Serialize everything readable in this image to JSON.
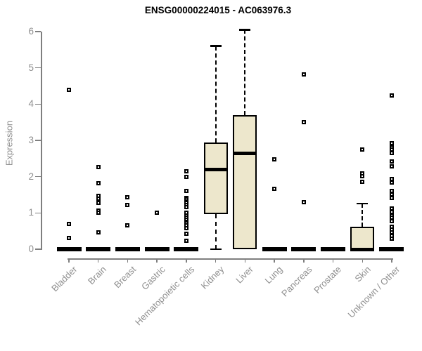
{
  "title": "ENSG00000224015 - AC063976.3",
  "colors": {
    "box_fill": "#EDE7CC",
    "box_border": "#000000",
    "median": "#000000",
    "axis": "#7F7F7F",
    "tick_label": "#8F8F8F",
    "title_text": "#000000",
    "background": "#FFFFFF"
  },
  "chart_data": {
    "type": "boxplot",
    "title": "ENSG00000224015 - AC063976.3",
    "xlabel": "",
    "ylabel": "Expression",
    "ylim": [
      0,
      6
    ],
    "yticks": [
      0,
      1,
      2,
      3,
      4,
      5,
      6
    ],
    "grid": false,
    "legend": false,
    "categories": [
      "Bladder",
      "Brain",
      "Breast",
      "Gastric",
      "Hematopoietic cells",
      "Kidney",
      "Liver",
      "Lung",
      "Pancreas",
      "Prostate",
      "Skin",
      "Unknown / Other"
    ],
    "boxes": [
      {
        "category": "Bladder",
        "whisker_low": 0,
        "q1": 0,
        "median": 0,
        "q3": 0,
        "whisker_high": 0,
        "outliers": [
          4.4,
          0.7,
          0.3
        ]
      },
      {
        "category": "Brain",
        "whisker_low": 0,
        "q1": 0,
        "median": 0,
        "q3": 0,
        "whisker_high": 0,
        "outliers": [
          2.27,
          1.82,
          1.47,
          1.4,
          1.28,
          1.06,
          1.0,
          0.46
        ]
      },
      {
        "category": "Breast",
        "whisker_low": 0,
        "q1": 0,
        "median": 0,
        "q3": 0,
        "whisker_high": 0,
        "outliers": [
          1.43,
          1.22,
          0.65
        ]
      },
      {
        "category": "Gastric",
        "whisker_low": 0,
        "q1": 0,
        "median": 0,
        "q3": 0,
        "whisker_high": 0,
        "outliers": [
          1.01
        ]
      },
      {
        "category": "Hematopoietic cells",
        "whisker_low": 0,
        "q1": 0,
        "median": 0,
        "q3": 0,
        "whisker_high": 0,
        "outliers": [
          2.15,
          1.99,
          1.6,
          1.42,
          1.37,
          1.32,
          1.27,
          1.22,
          1.17,
          1.0,
          0.92,
          0.87,
          0.82,
          0.76,
          0.71,
          0.65,
          0.58,
          0.43,
          0.23
        ]
      },
      {
        "category": "Kidney",
        "whisker_low": 0,
        "q1": 0.97,
        "median": 2.2,
        "q3": 2.95,
        "whisker_high": 5.6,
        "outliers": []
      },
      {
        "category": "Liver",
        "whisker_low": 0,
        "q1": 0,
        "median": 2.65,
        "q3": 3.7,
        "whisker_high": 6.05,
        "outliers": []
      },
      {
        "category": "Lung",
        "whisker_low": 0,
        "q1": 0,
        "median": 0,
        "q3": 0,
        "whisker_high": 0,
        "outliers": [
          2.48,
          1.66
        ]
      },
      {
        "category": "Pancreas",
        "whisker_low": 0,
        "q1": 0,
        "median": 0,
        "q3": 0,
        "whisker_high": 0,
        "outliers": [
          4.82,
          3.5,
          1.3
        ]
      },
      {
        "category": "Prostate",
        "whisker_low": 0,
        "q1": 0,
        "median": 0,
        "q3": 0,
        "whisker_high": 0,
        "outliers": []
      },
      {
        "category": "Skin",
        "whisker_low": 0,
        "q1": 0,
        "median": 0,
        "q3": 0.62,
        "whisker_high": 1.26,
        "outliers": [
          2.75,
          2.09,
          2.02,
          1.86
        ]
      },
      {
        "category": "Unknown / Other",
        "whisker_low": 0,
        "q1": 0,
        "median": 0,
        "q3": 0,
        "whisker_high": 0,
        "outliers": [
          4.24,
          2.92,
          2.81,
          2.75,
          2.65,
          2.42,
          2.28,
          1.94,
          1.84,
          1.61,
          1.5,
          1.41,
          1.12,
          1.02,
          0.93,
          0.87,
          0.77,
          0.62,
          0.54,
          0.46,
          0.37,
          0.29
        ]
      }
    ]
  }
}
